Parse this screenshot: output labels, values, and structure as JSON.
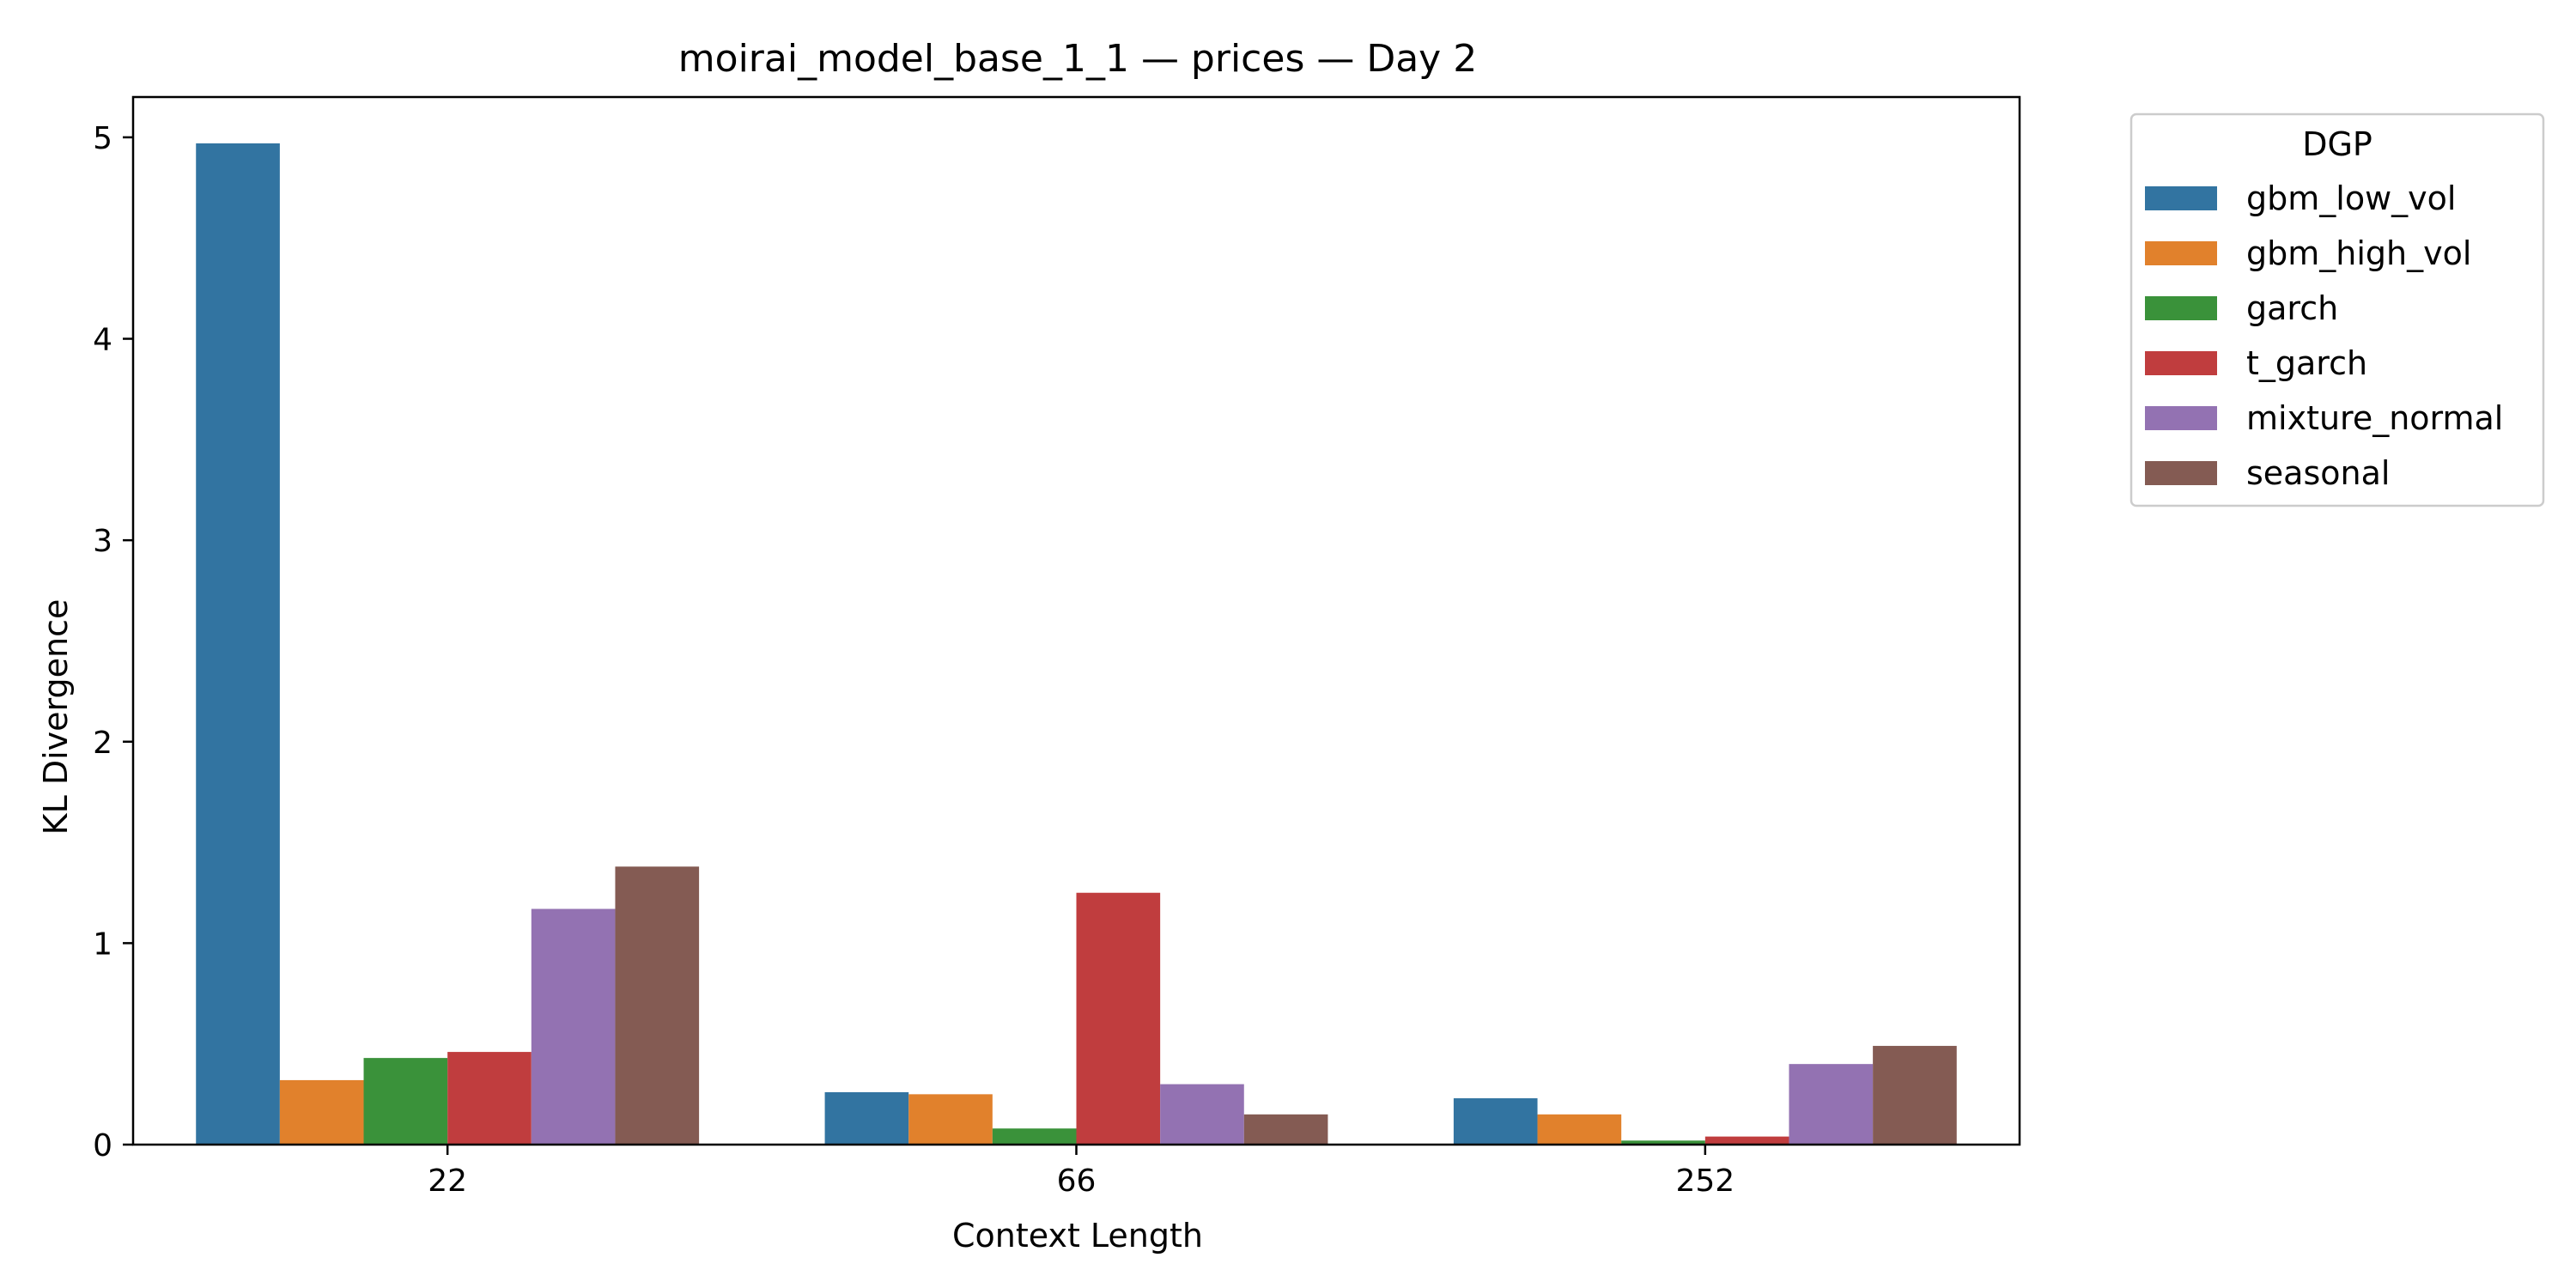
{
  "chart_data": {
    "type": "bar",
    "title": "moirai_model_base_1_1 — prices — Day 2",
    "xlabel": "Context Length",
    "ylabel": "KL Divergence",
    "categories": [
      "22",
      "66",
      "252"
    ],
    "ylim": [
      0,
      5.2
    ],
    "yticks": [
      0,
      1,
      2,
      3,
      4,
      5
    ],
    "grid": false,
    "legend": {
      "title": "DGP",
      "placement": "outside-top-right"
    },
    "series": [
      {
        "name": "gbm_low_vol",
        "color": "#3274a1",
        "values": [
          4.97,
          0.26,
          0.23
        ]
      },
      {
        "name": "gbm_high_vol",
        "color": "#e1812c",
        "values": [
          0.32,
          0.25,
          0.15
        ]
      },
      {
        "name": "garch",
        "color": "#3a923a",
        "values": [
          0.43,
          0.08,
          0.02
        ]
      },
      {
        "name": "t_garch",
        "color": "#c03d3e",
        "values": [
          0.46,
          1.25,
          0.04
        ]
      },
      {
        "name": "mixture_normal",
        "color": "#9372b2",
        "values": [
          1.17,
          0.3,
          0.4
        ]
      },
      {
        "name": "seasonal",
        "color": "#845b53",
        "values": [
          1.38,
          0.15,
          0.49
        ]
      }
    ]
  }
}
